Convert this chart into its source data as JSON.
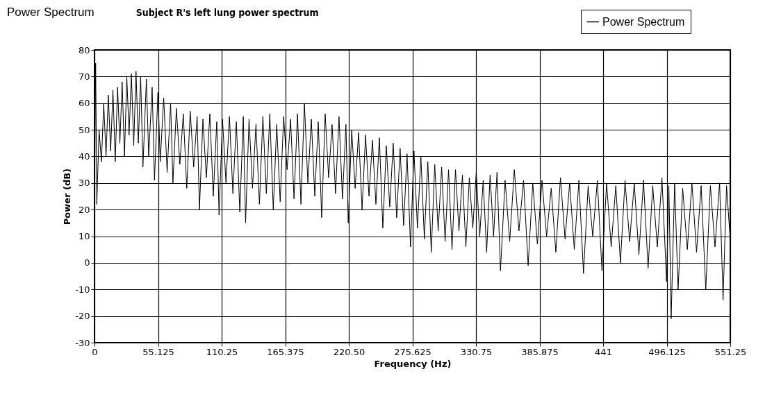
{
  "chart_data": {
    "type": "line",
    "title": "Power Spectrum",
    "subtitle": "Subject R's left lung power spectrum",
    "xlabel": "Frequency (Hz)",
    "ylabel": "Power (dB)",
    "xlim": [
      0,
      551.25
    ],
    "xticks": [
      0,
      55.125,
      110.25,
      165.375,
      {
        "value": 220.5,
        "label": "220.50"
      },
      275.625,
      330.75,
      385.875,
      441,
      496.125,
      551.25
    ],
    "ylim": [
      -30,
      80
    ],
    "yticks": [
      -30,
      -20,
      -10,
      0,
      10,
      20,
      30,
      40,
      50,
      60,
      70,
      80
    ],
    "grid": true,
    "legend": "top right",
    "line_style": "solid",
    "marker": "none",
    "x": [
      0,
      1,
      2,
      4,
      6,
      8,
      10,
      12,
      14,
      16,
      18,
      20,
      22,
      24,
      26,
      28,
      30,
      32,
      34,
      36,
      38,
      40,
      42,
      45,
      47,
      50,
      52,
      55,
      57,
      60,
      63,
      66,
      68,
      71,
      74,
      77,
      80,
      83,
      86,
      89,
      91,
      94,
      97,
      100,
      103,
      106,
      108,
      111,
      114,
      117,
      120,
      123,
      126,
      129,
      131,
      134,
      137,
      140,
      143,
      146,
      149,
      152,
      155,
      158,
      161,
      164,
      167,
      170,
      173,
      176,
      179,
      182,
      185,
      188,
      191,
      194,
      197,
      200,
      203,
      206,
      209,
      212,
      215,
      218,
      220,
      223,
      226,
      229,
      232,
      235,
      238,
      241,
      244,
      247,
      250,
      253,
      256,
      259,
      262,
      265,
      268,
      271,
      274,
      277,
      280,
      283,
      286,
      289,
      292,
      295,
      298,
      301,
      304,
      307,
      310,
      313,
      316,
      319,
      322,
      325,
      328,
      331,
      334,
      337,
      340,
      343,
      346,
      349,
      352,
      356,
      360,
      364,
      368,
      372,
      376,
      380,
      384,
      388,
      392,
      396,
      400,
      404,
      408,
      412,
      416,
      420,
      424,
      428,
      432,
      436,
      440,
      444,
      448,
      452,
      456,
      460,
      464,
      468,
      472,
      476,
      480,
      484,
      488,
      492,
      496,
      498,
      500,
      503,
      506,
      510,
      514,
      518,
      522,
      526,
      530,
      534,
      538,
      542,
      545,
      548,
      551
    ],
    "series": [
      {
        "name": "Power Spectrum",
        "color": "#000000",
        "values": [
          20,
          75,
          22,
          50,
          38,
          60,
          40,
          63,
          42,
          65,
          38,
          66,
          45,
          68,
          40,
          70,
          48,
          71,
          44,
          72,
          45,
          70,
          36,
          69,
          40,
          66,
          31,
          64,
          38,
          62,
          34,
          60,
          30,
          58,
          37,
          56,
          28,
          57,
          36,
          55,
          20,
          54,
          32,
          56,
          25,
          53,
          18,
          54,
          30,
          55,
          26,
          53,
          19,
          55,
          15,
          54,
          28,
          52,
          22,
          55,
          26,
          56,
          20,
          52,
          23,
          55,
          35,
          54,
          24,
          56,
          22,
          60,
          30,
          54,
          25,
          53,
          17,
          56,
          32,
          52,
          26,
          55,
          24,
          52,
          15,
          50,
          28,
          49,
          20,
          48,
          25,
          46,
          22,
          47,
          13,
          44,
          21,
          45,
          17,
          43,
          14,
          41,
          6,
          42,
          13,
          40,
          9,
          38,
          4,
          37,
          12,
          36,
          8,
          35,
          5,
          35,
          12,
          33,
          6,
          32,
          13,
          34,
          10,
          31,
          4,
          33,
          10,
          34,
          -3,
          31,
          8,
          35,
          12,
          31,
          -1,
          30,
          7,
          31,
          10,
          28,
          4,
          32,
          9,
          30,
          5,
          31,
          -4,
          29,
          10,
          31,
          -3,
          30,
          6,
          29,
          0,
          31,
          8,
          30,
          3,
          31,
          -2,
          29,
          6,
          32,
          -7,
          29,
          -21,
          30,
          -10,
          28,
          5,
          30,
          4,
          29,
          -10,
          29,
          6,
          30,
          -14,
          29,
          10
        ]
      }
    ]
  }
}
